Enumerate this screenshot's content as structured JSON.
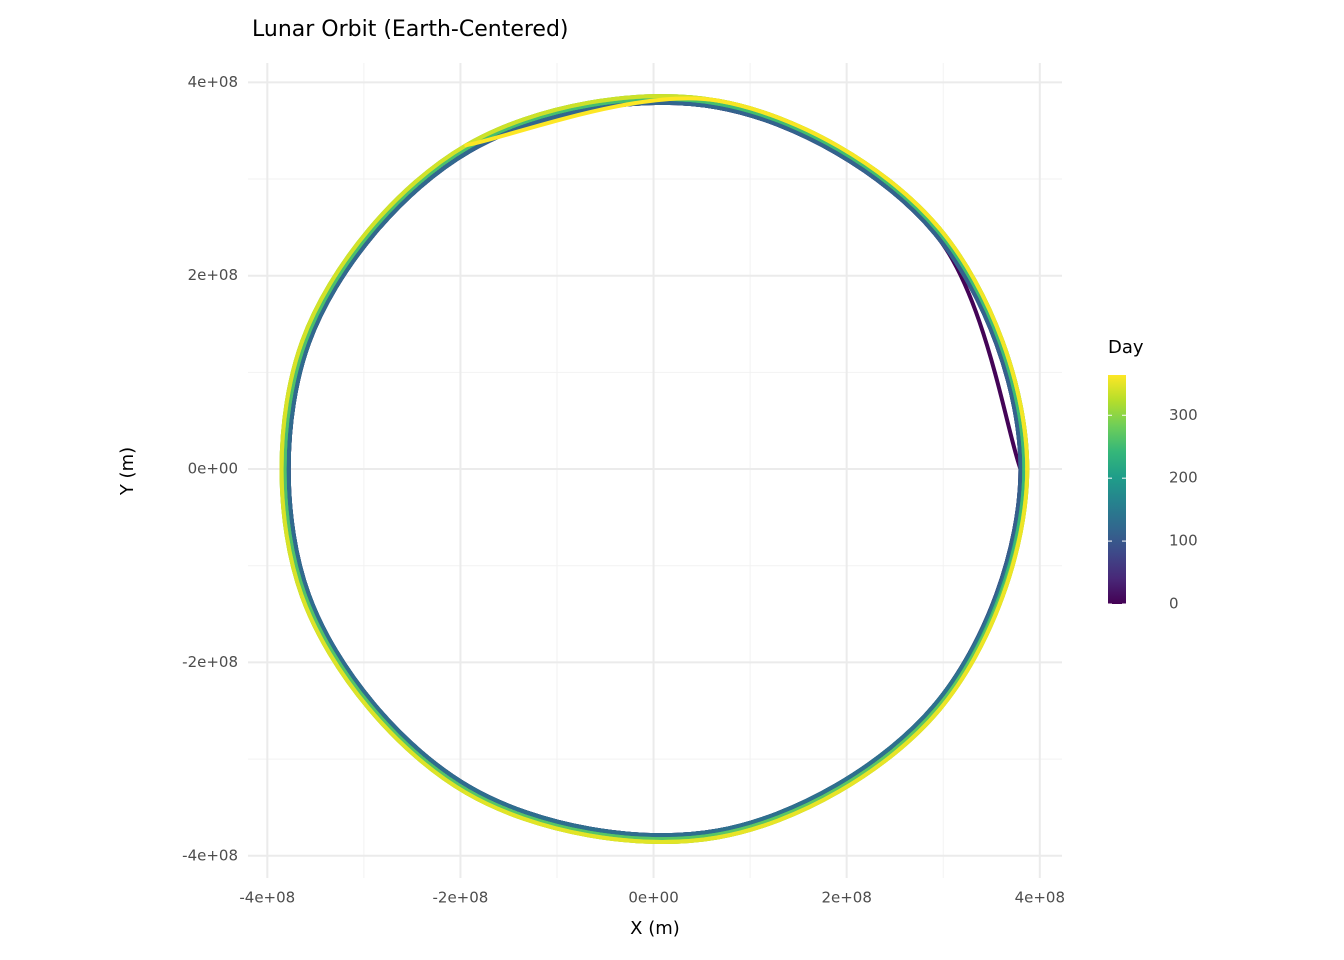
{
  "chart_data": {
    "type": "path",
    "title": "Lunar Orbit (Earth-Centered)",
    "x_label": "X (m)",
    "y_label": "Y (m)",
    "legend_title": "Day",
    "xlim": [
      -420000000.0,
      423000000.0
    ],
    "ylim": [
      -423000000.0,
      420000000.0
    ],
    "xticks": [
      {
        "value": -400000000.0,
        "label": "-4e+08"
      },
      {
        "value": -200000000.0,
        "label": "-2e+08"
      },
      {
        "value": 0,
        "label": "0e+00"
      },
      {
        "value": 200000000.0,
        "label": "2e+08"
      },
      {
        "value": 400000000.0,
        "label": "4e+08"
      }
    ],
    "yticks": [
      {
        "value": -400000000.0,
        "label": "-4e+08"
      },
      {
        "value": -200000000.0,
        "label": "-2e+08"
      },
      {
        "value": 0,
        "label": "0e+00"
      },
      {
        "value": 200000000.0,
        "label": "2e+08"
      },
      {
        "value": 400000000.0,
        "label": "4e+08"
      }
    ],
    "xminor": [
      -300000000.0,
      -100000000.0,
      100000000.0,
      300000000.0
    ],
    "yminor": [
      -300000000.0,
      -100000000.0,
      100000000.0,
      300000000.0
    ],
    "grid": true,
    "colormap": "viridis",
    "color_range": [
      0,
      364
    ],
    "color_ticks": [
      0,
      100,
      200,
      300
    ],
    "x": [
      380000000.0,
      291000000.0,
      66000000.0,
      -190000000.0,
      -357000000.0,
      -357000000.0,
      -190000000.0,
      66000000.0,
      291000000.0,
      380000000.0,
      291000000.0,
      66000000.0,
      -190000000.0,
      -357000000.0,
      -357000000.0,
      -190000000.0,
      66000000.0,
      291000000.0,
      380000000.0,
      291000000.0,
      66000000.0,
      -190000000.0,
      -357000000.0,
      -357000000.0,
      -190000000.0,
      66000000.0,
      291000000.0,
      380000000.0,
      291000000.0,
      66000000.0,
      -190000000.0,
      -357000000.0,
      -357000000.0,
      -190000000.0,
      66000000.0,
      291000000.0,
      380000000.0,
      291000000.0,
      66000000.0,
      -190000000.0,
      -357000000.0,
      -357000000.0,
      -190000000.0,
      66000000.0,
      291000000.0,
      384000000.0,
      294000000.0,
      67000000.0,
      -192000000.0,
      -361000000.0,
      -361000000.0,
      -192000000.0,
      67000000.0,
      294000000.0,
      384000000.0,
      294000000.0,
      67000000.0,
      -192000000.0,
      -361000000.0,
      -361000000.0,
      -192000000.0,
      67000000.0,
      294000000.0,
      384000000.0,
      294000000.0,
      67000000.0,
      -192000000.0,
      -361000000.0,
      -361000000.0,
      -192000000.0,
      67000000.0,
      294000000.0,
      384000000.0,
      294000000.0,
      67000000.0,
      -192000000.0,
      -361000000.0,
      -361000000.0,
      -192000000.0,
      67000000.0,
      294000000.0,
      384000000.0,
      294000000.0,
      67000000.0,
      -192000000.0,
      -361000000.0,
      -361000000.0,
      -192000000.0,
      67000000.0,
      294000000.0,
      387000000.0,
      296000000.0,
      67000000.0,
      -194000000.0,
      -364000000.0,
      -364000000.0,
      -194000000.0,
      67000000.0,
      296000000.0,
      387000000.0,
      296000000.0,
      67000000.0,
      -194000000.0,
      -364000000.0,
      -364000000.0,
      -194000000.0,
      67000000.0,
      296000000.0,
      387000000.0,
      296000000.0,
      67000000.0,
      -194000000.0,
      -364000000.0,
      -364000000.0,
      -194000000.0,
      67000000.0,
      296000000.0,
      387000000.0,
      296000000.0,
      67000000.0,
      -194000000.0
    ],
    "y": [
      0,
      244000000.0,
      374000000.0,
      329000000.0,
      130000000.0,
      -130000000.0,
      -329000000.0,
      -374000000.0,
      -244000000.0,
      0,
      244000000.0,
      374000000.0,
      329000000.0,
      130000000.0,
      -130000000.0,
      -329000000.0,
      -374000000.0,
      -244000000.0,
      0,
      244000000.0,
      374000000.0,
      329000000.0,
      130000000.0,
      -130000000.0,
      -329000000.0,
      -374000000.0,
      -244000000.0,
      0,
      244000000.0,
      374000000.0,
      329000000.0,
      130000000.0,
      -130000000.0,
      -329000000.0,
      -374000000.0,
      -244000000.0,
      0,
      244000000.0,
      374000000.0,
      329000000.0,
      130000000.0,
      -130000000.0,
      -329000000.0,
      -374000000.0,
      -244000000.0,
      0,
      247000000.0,
      378000000.0,
      333000000.0,
      131000000.0,
      -131000000.0,
      -333000000.0,
      -378000000.0,
      -247000000.0,
      0,
      247000000.0,
      378000000.0,
      333000000.0,
      131000000.0,
      -131000000.0,
      -333000000.0,
      -378000000.0,
      -247000000.0,
      0,
      247000000.0,
      378000000.0,
      333000000.0,
      131000000.0,
      -131000000.0,
      -333000000.0,
      -378000000.0,
      -247000000.0,
      0,
      247000000.0,
      378000000.0,
      333000000.0,
      131000000.0,
      -131000000.0,
      -333000000.0,
      -378000000.0,
      -247000000.0,
      0,
      247000000.0,
      378000000.0,
      333000000.0,
      131000000.0,
      -131000000.0,
      -333000000.0,
      -378000000.0,
      -247000000.0,
      0,
      249000000.0,
      381000000.0,
      335000000.0,
      132000000.0,
      -132000000.0,
      -335000000.0,
      -381000000.0,
      -249000000.0,
      0,
      249000000.0,
      381000000.0,
      335000000.0,
      132000000.0,
      -132000000.0,
      -335000000.0,
      -381000000.0,
      -249000000.0,
      0,
      249000000.0,
      381000000.0,
      335000000.0,
      132000000.0,
      -132000000.0,
      -335000000.0,
      -381000000.0,
      -249000000.0,
      0,
      249000000.0,
      381000000.0,
      335000000.0
    ],
    "color_values": [
      0,
      3,
      6,
      9,
      12,
      15,
      18,
      21,
      24,
      27,
      30,
      33,
      36,
      39,
      42,
      46,
      49,
      52,
      55,
      58,
      61,
      64,
      67,
      70,
      73,
      76,
      79,
      82,
      85,
      88,
      91,
      94,
      97,
      100,
      103,
      106,
      109,
      112,
      115,
      118,
      121,
      124,
      127,
      131,
      134,
      137,
      140,
      143,
      146,
      149,
      152,
      155,
      158,
      161,
      164,
      167,
      170,
      173,
      176,
      179,
      182,
      185,
      188,
      191,
      194,
      197,
      200,
      203,
      206,
      209,
      212,
      216,
      219,
      222,
      225,
      228,
      231,
      234,
      237,
      240,
      243,
      246,
      249,
      252,
      255,
      258,
      261,
      264,
      267,
      270,
      273,
      276,
      279,
      282,
      285,
      288,
      291,
      294,
      298,
      301,
      304,
      307,
      310,
      313,
      316,
      319,
      322,
      325,
      328,
      331,
      334,
      337,
      340,
      343,
      346,
      349,
      352,
      355,
      358,
      361,
      364
    ]
  }
}
